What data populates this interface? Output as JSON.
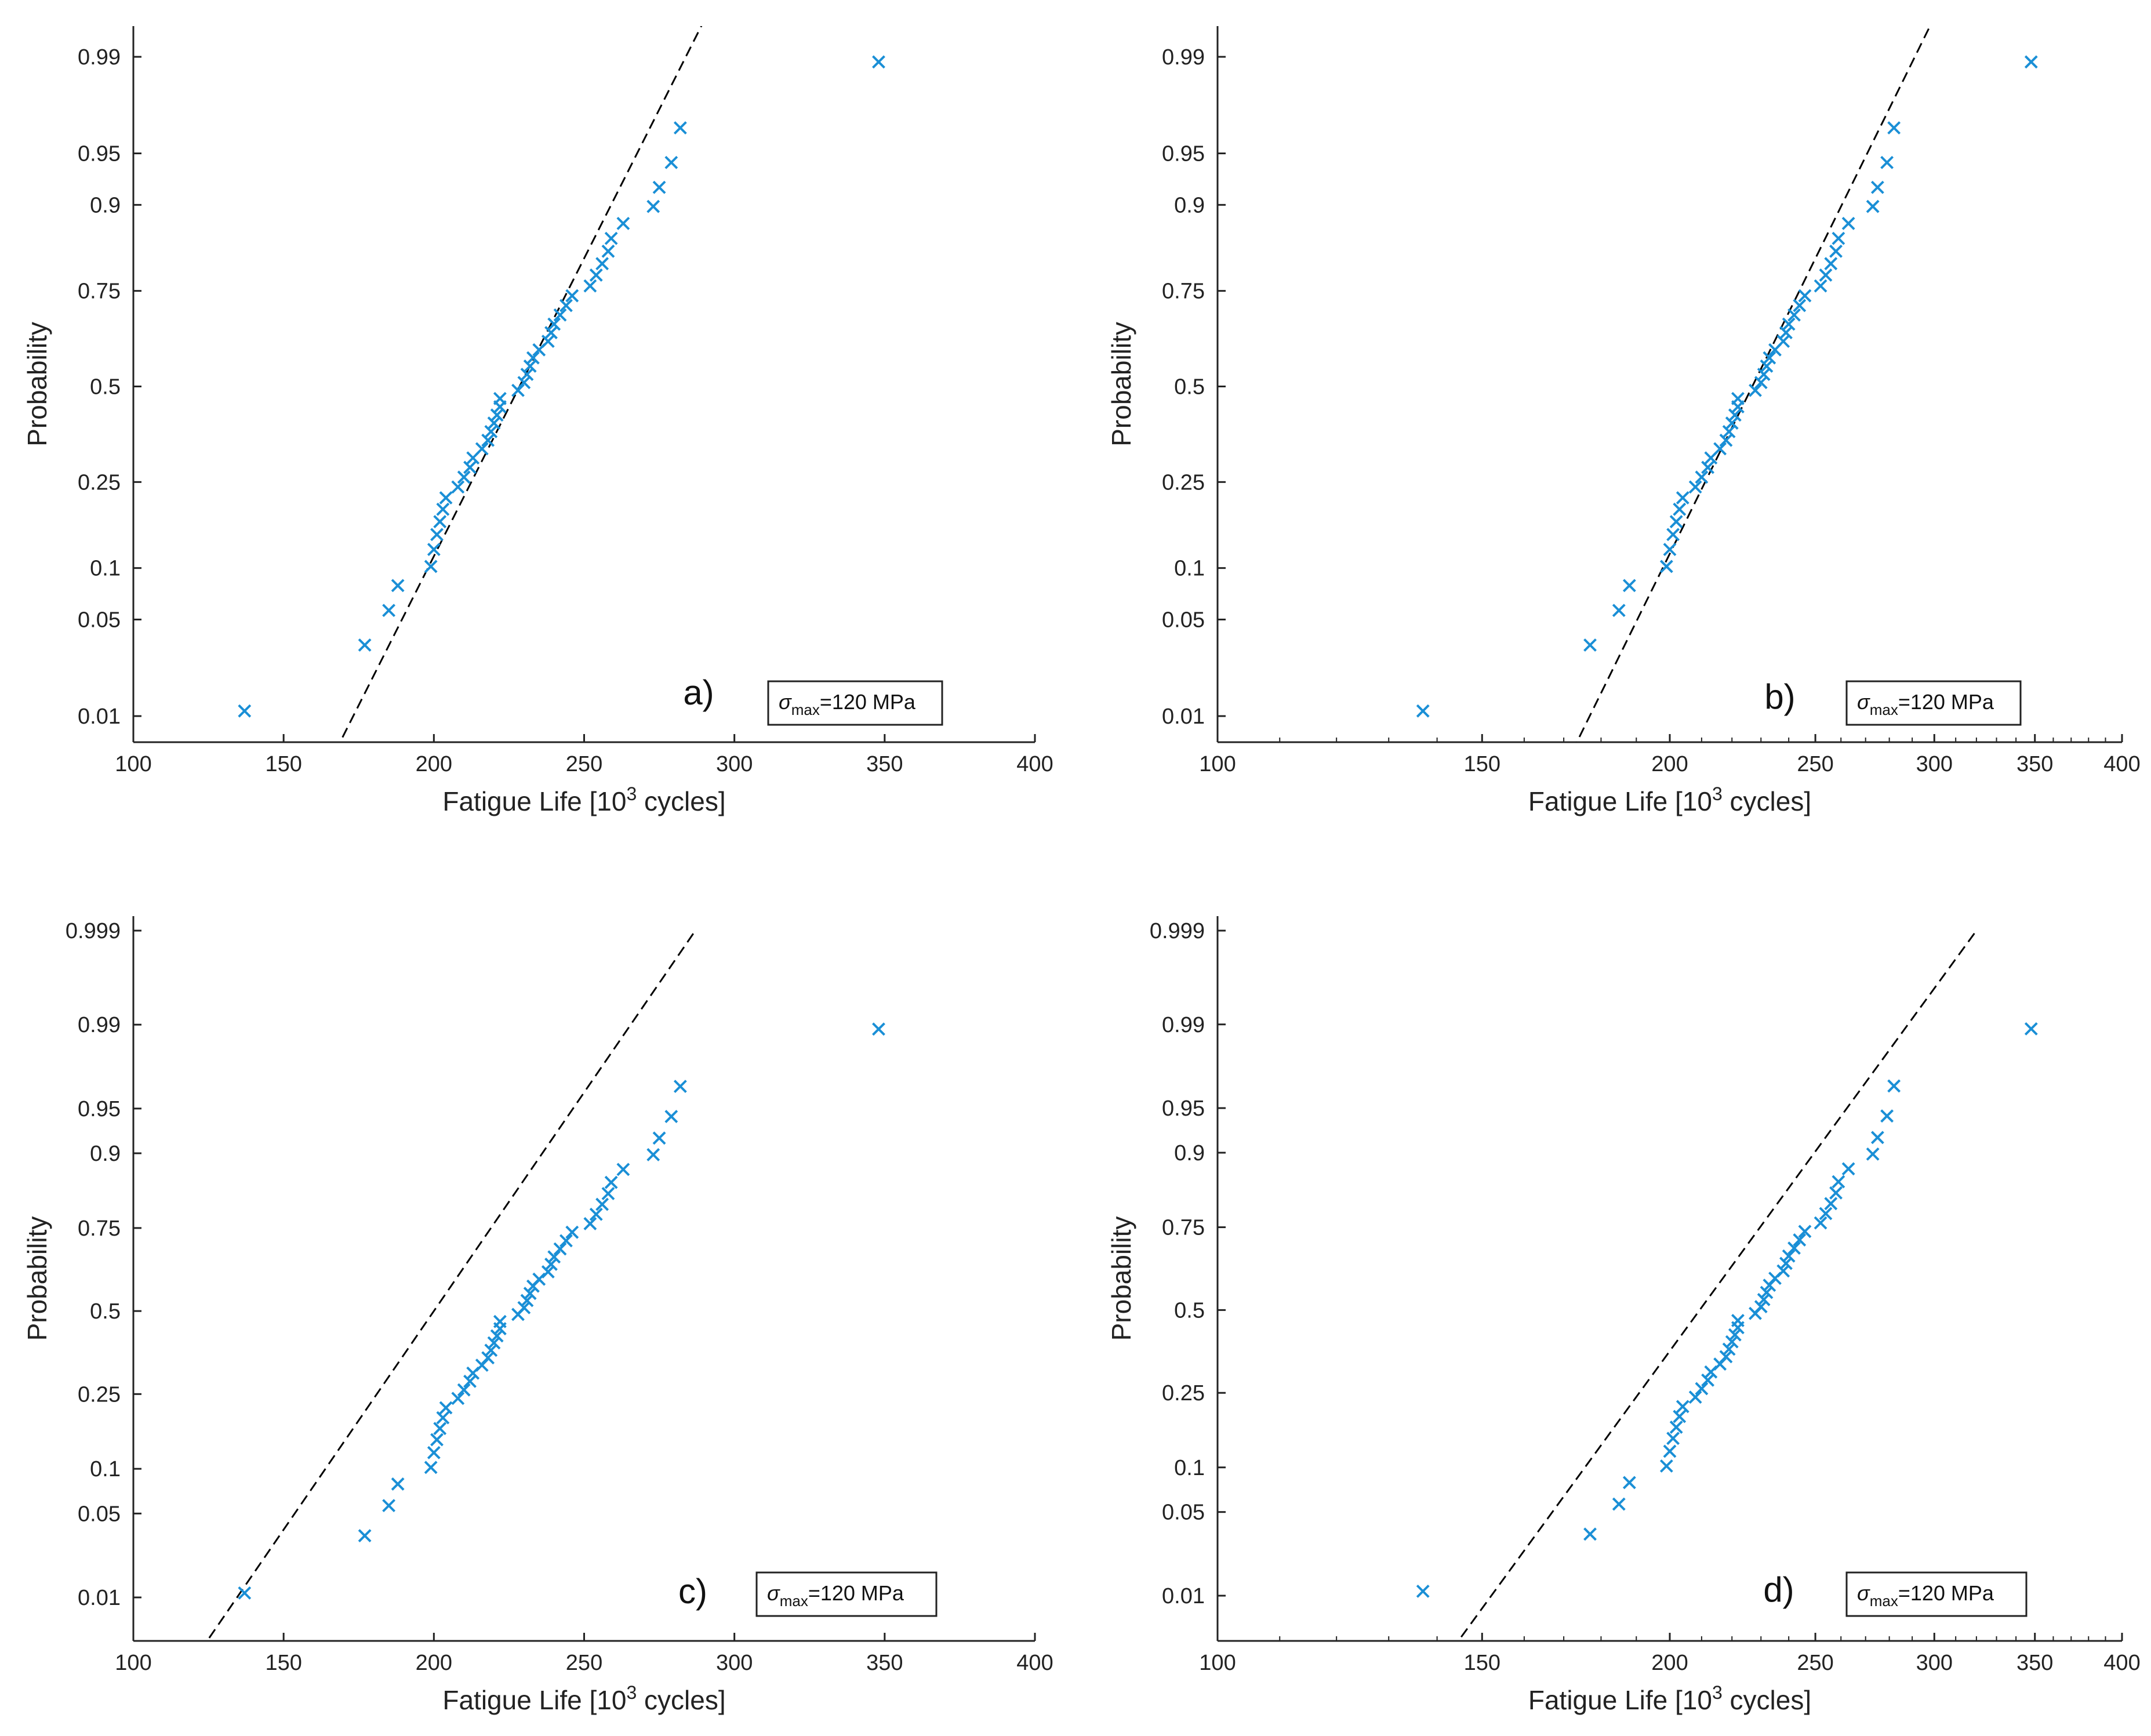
{
  "chart_data": [
    {
      "type": "scatter",
      "panel_label": "a)",
      "scale": "linear",
      "xlabel": "Fatigue Life [10",
      "xlabel_sup": "3",
      "xlabel_end": " cycles]",
      "ylabel": "Probability",
      "xlim": [
        100,
        400
      ],
      "x_ticks": [
        "100",
        "150",
        "200",
        "250",
        "300",
        "350",
        "400"
      ],
      "y_ticks": [
        "0.01",
        "0.05",
        "0.1",
        "0.25",
        "0.5",
        "0.75",
        "0.9",
        "0.95",
        "0.99"
      ],
      "fit_line": {
        "x": [
          155,
          302
        ],
        "y": [
          0.001,
          0.999
        ]
      },
      "stress": {
        "symbol": "σ",
        "sub": "max",
        "value": "=120 MPa"
      }
    },
    {
      "type": "scatter",
      "panel_label": "b)",
      "scale": "log",
      "xlabel": "Fatigue Life [10",
      "xlabel_sup": "3",
      "xlabel_end": " cycles]",
      "ylabel": "Probability",
      "xlim": [
        100,
        400
      ],
      "x_ticks": [
        "100",
        "150",
        "200",
        "250",
        "300",
        "350",
        "400"
      ],
      "y_ticks": [
        "0.01",
        "0.05",
        "0.1",
        "0.25",
        "0.5",
        "0.75",
        "0.9",
        "0.95",
        "0.99"
      ],
      "fit_line": {
        "x": [
          163,
          316
        ],
        "y": [
          0.001,
          0.999
        ]
      },
      "stress": {
        "symbol": "σ",
        "sub": "max",
        "value": "=120 MPa"
      }
    },
    {
      "type": "scatter",
      "panel_label": "c)",
      "scale": "linear",
      "xlabel": "Fatigue Life [10",
      "xlabel_sup": "3",
      "xlabel_end": " cycles]",
      "ylabel": "Probability",
      "xlim": [
        100,
        400
      ],
      "x_ticks": [
        "100",
        "150",
        "200",
        "250",
        "300",
        "350",
        "400"
      ],
      "y_ticks": [
        "0.01",
        "0.05",
        "0.1",
        "0.25",
        "0.5",
        "0.75",
        "0.9",
        "0.95",
        "0.99",
        "0.999"
      ],
      "fit_line": {
        "x": [
          113,
          287
        ],
        "y": [
          0.001,
          0.999
        ]
      },
      "stress": {
        "symbol": "σ",
        "sub": "max",
        "value": "=120 MPa"
      }
    },
    {
      "type": "scatter",
      "panel_label": "d)",
      "scale": "log",
      "xlabel": "Fatigue Life [10",
      "xlabel_sup": "3",
      "xlabel_end": " cycles]",
      "ylabel": "Probability",
      "xlim": [
        100,
        400
      ],
      "x_ticks": [
        "100",
        "150",
        "200",
        "250",
        "300",
        "350",
        "400"
      ],
      "y_ticks": [
        "0.01",
        "0.05",
        "0.1",
        "0.25",
        "0.5",
        "0.75",
        "0.9",
        "0.95",
        "0.99",
        "0.999"
      ],
      "fit_line": {
        "x": [
          137,
          320
        ],
        "y": [
          0.001,
          0.999
        ]
      },
      "stress": {
        "symbol": "σ",
        "sub": "max",
        "value": "=120 MPa"
      }
    }
  ],
  "data_points": {
    "fatigue_life": [
      137,
      177,
      185,
      188,
      199,
      200,
      201,
      202,
      203,
      204,
      208,
      210,
      212,
      213,
      216,
      218,
      219,
      220,
      221,
      222,
      222,
      228,
      230,
      231,
      232,
      233,
      235,
      238,
      239,
      240,
      242,
      244,
      246,
      252,
      254,
      256,
      258,
      259,
      263,
      273,
      275,
      279,
      282,
      348
    ],
    "probability": [
      0.011,
      0.034,
      0.057,
      0.08,
      0.102,
      0.125,
      0.148,
      0.17,
      0.193,
      0.216,
      0.239,
      0.261,
      0.284,
      0.307,
      0.33,
      0.352,
      0.375,
      0.398,
      0.42,
      0.443,
      0.466,
      0.489,
      0.511,
      0.534,
      0.557,
      0.58,
      0.602,
      0.625,
      0.648,
      0.67,
      0.693,
      0.716,
      0.739,
      0.761,
      0.784,
      0.807,
      0.83,
      0.852,
      0.875,
      0.898,
      0.92,
      0.943,
      0.966,
      0.989
    ]
  },
  "colors": {
    "marker": "#1a8fd6",
    "fit_line": "#000000",
    "axis": "#222222",
    "text": "#222222"
  }
}
